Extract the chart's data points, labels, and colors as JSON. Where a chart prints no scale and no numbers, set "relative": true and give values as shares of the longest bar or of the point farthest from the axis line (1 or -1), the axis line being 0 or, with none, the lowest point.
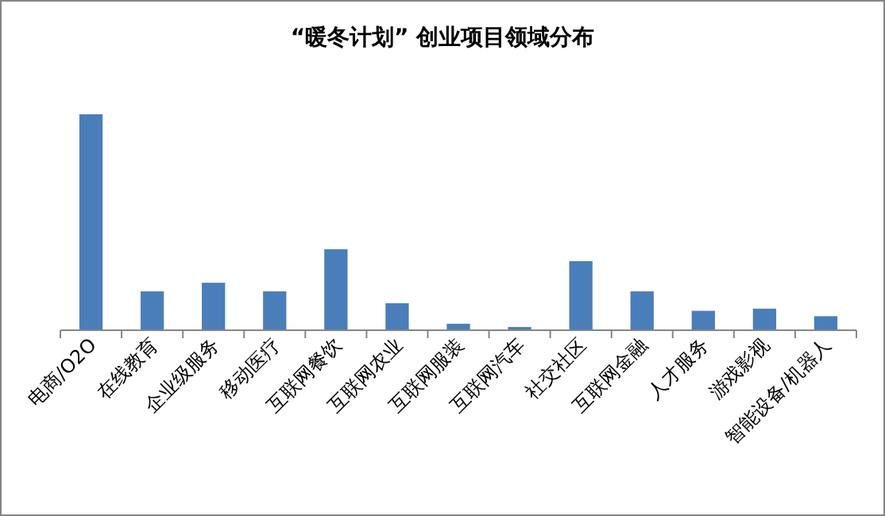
{
  "chart_data": {
    "type": "bar",
    "title": "“暖冬计划” 创业项目领域分布",
    "relative": true,
    "color": "#4a7ebb",
    "categories": [
      "电商/O2O",
      "在线教育",
      "企业级服务",
      "移动医疗",
      "互联网餐饮",
      "互联网农业",
      "互联网服装",
      "互联网汽车",
      "社交社区",
      "互联网金融",
      "人才服务",
      "游戏影视",
      "智能设备/机器人"
    ],
    "values": [
      1,
      0.18,
      0.22,
      0.18,
      0.375,
      0.125,
      0.03,
      0.015,
      0.32,
      0.18,
      0.09,
      0.1,
      0.065
    ]
  }
}
